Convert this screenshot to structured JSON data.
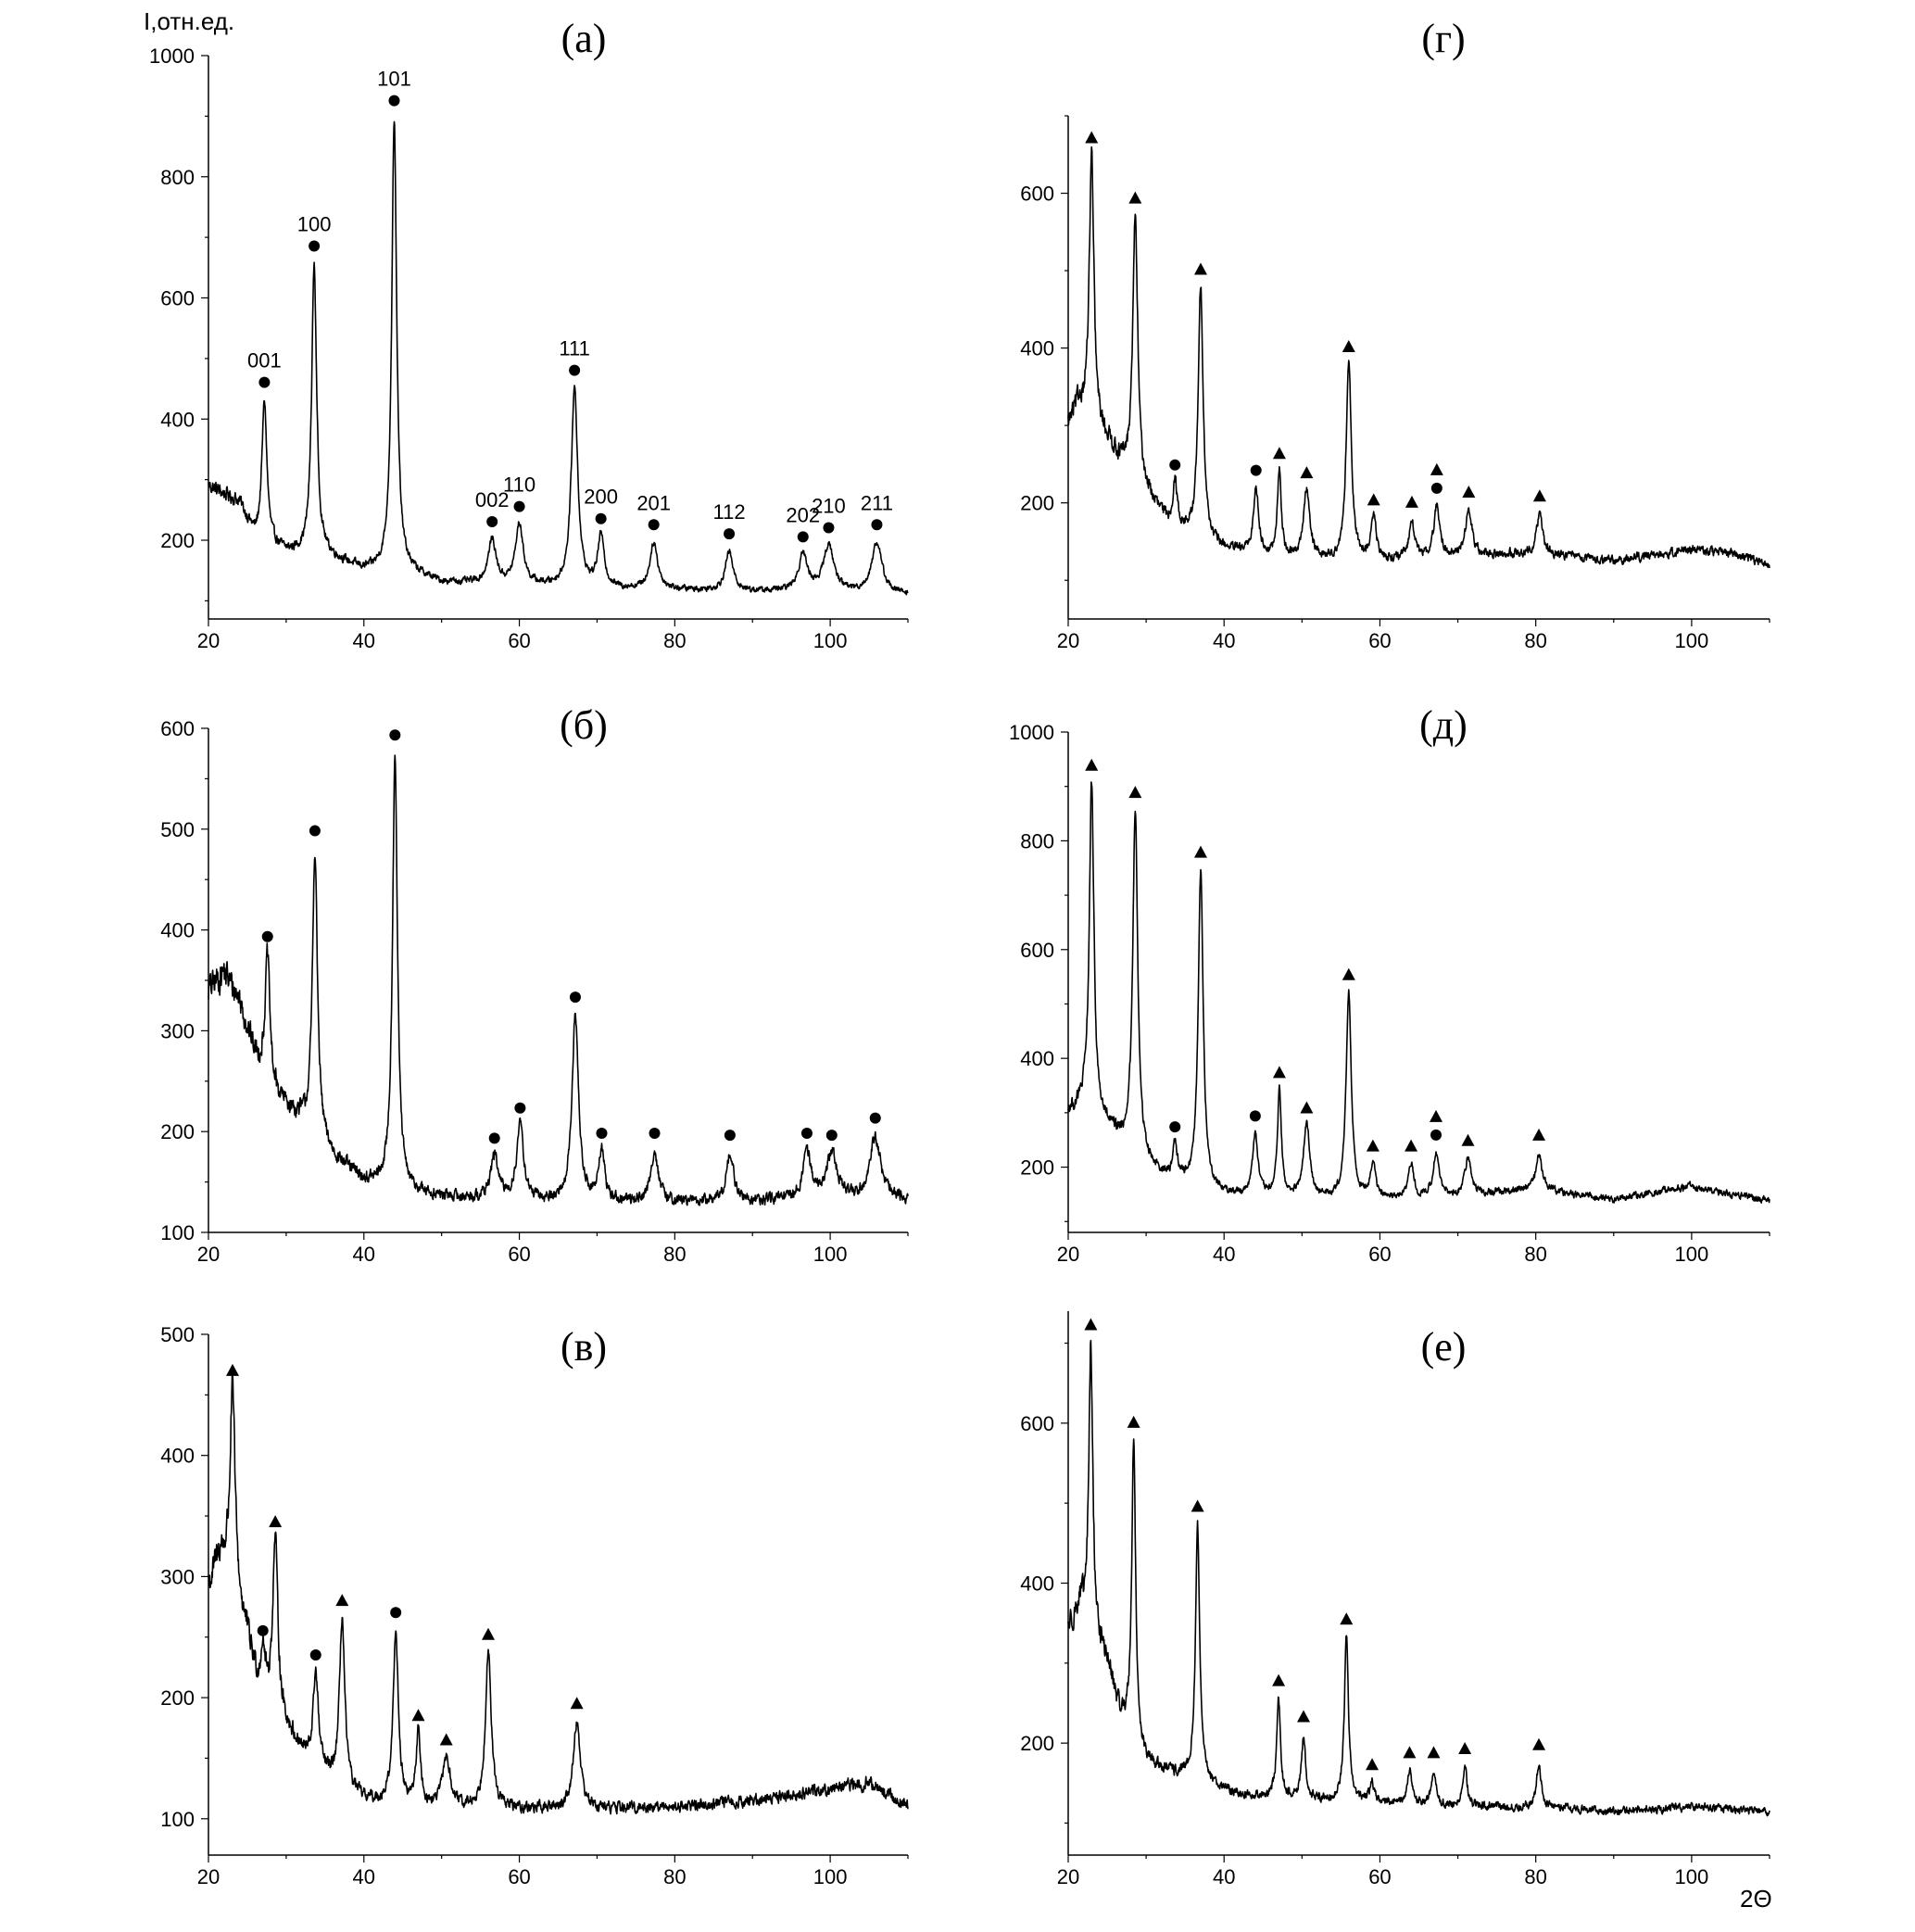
{
  "figure": {
    "ylabel": "I,отн.ед.",
    "xlabel": "2Θ",
    "marker_legend": {
      "circle": "●",
      "triangle": "▲"
    },
    "line_color": "#000000"
  },
  "chart_data": [
    {
      "id": "a",
      "type": "line",
      "title": "(а)",
      "xlim": [
        20,
        110
      ],
      "ylim": [
        70,
        1000
      ],
      "xticks": [
        20,
        40,
        60,
        80,
        100
      ],
      "yticks": [
        200,
        400,
        600,
        800,
        1000
      ],
      "baseline": [
        [
          20,
          290
        ],
        [
          24,
          262
        ],
        [
          26,
          205
        ],
        [
          30,
          180
        ],
        [
          35,
          175
        ],
        [
          40,
          150
        ],
        [
          45,
          150
        ],
        [
          50,
          130
        ],
        [
          60,
          125
        ],
        [
          70,
          120
        ],
        [
          80,
          118
        ],
        [
          90,
          115
        ],
        [
          100,
          115
        ],
        [
          110,
          110
        ]
      ],
      "peaks": [
        {
          "x": 27.2,
          "y": 430,
          "w": 0.38,
          "marker": "circle",
          "label": "001"
        },
        {
          "x": 33.6,
          "y": 655,
          "w": 0.38,
          "marker": "circle",
          "label": "100"
        },
        {
          "x": 43.9,
          "y": 895,
          "w": 0.38,
          "marker": "circle",
          "label": "101"
        },
        {
          "x": 56.5,
          "y": 200,
          "w": 0.6,
          "marker": "circle",
          "label": "002"
        },
        {
          "x": 60.0,
          "y": 225,
          "w": 0.6,
          "marker": "circle",
          "label": "110"
        },
        {
          "x": 67.1,
          "y": 450,
          "w": 0.5,
          "marker": "circle",
          "label": "111"
        },
        {
          "x": 70.5,
          "y": 205,
          "w": 0.5,
          "marker": "circle",
          "label": "200"
        },
        {
          "x": 77.3,
          "y": 195,
          "w": 0.6,
          "marker": "circle",
          "label": "201"
        },
        {
          "x": 87.0,
          "y": 180,
          "w": 0.6,
          "marker": "circle",
          "label": "112"
        },
        {
          "x": 96.5,
          "y": 175,
          "w": 0.7,
          "marker": "circle",
          "label": "202"
        },
        {
          "x": 99.8,
          "y": 190,
          "w": 0.8,
          "marker": "circle",
          "label": "210"
        },
        {
          "x": 106.0,
          "y": 195,
          "w": 0.8,
          "marker": "circle",
          "label": "211"
        }
      ]
    },
    {
      "id": "b",
      "type": "line",
      "title": "(б)",
      "xlim": [
        20,
        110
      ],
      "ylim": [
        100,
        600
      ],
      "xticks": [
        20,
        40,
        60,
        80,
        100
      ],
      "yticks": [
        100,
        200,
        300,
        400,
        500,
        600
      ],
      "baseline": [
        [
          20,
          340
        ],
        [
          22,
          358
        ],
        [
          24,
          330
        ],
        [
          26,
          275
        ],
        [
          28,
          240
        ],
        [
          32,
          210
        ],
        [
          36,
          175
        ],
        [
          40,
          150
        ],
        [
          45,
          140
        ],
        [
          50,
          135
        ],
        [
          60,
          130
        ],
        [
          70,
          130
        ],
        [
          80,
          130
        ],
        [
          90,
          130
        ],
        [
          100,
          135
        ],
        [
          110,
          132
        ]
      ],
      "peaks": [
        {
          "x": 27.6,
          "y": 375,
          "w": 0.38,
          "marker": "circle"
        },
        {
          "x": 33.7,
          "y": 480,
          "w": 0.38,
          "marker": "circle"
        },
        {
          "x": 44.0,
          "y": 575,
          "w": 0.38,
          "marker": "circle"
        },
        {
          "x": 56.8,
          "y": 175,
          "w": 0.6,
          "marker": "circle"
        },
        {
          "x": 60.1,
          "y": 205,
          "w": 0.55,
          "marker": "circle"
        },
        {
          "x": 67.2,
          "y": 315,
          "w": 0.5,
          "marker": "circle"
        },
        {
          "x": 70.6,
          "y": 180,
          "w": 0.45,
          "marker": "circle"
        },
        {
          "x": 77.4,
          "y": 180,
          "w": 0.55,
          "marker": "circle"
        },
        {
          "x": 87.1,
          "y": 178,
          "w": 0.55,
          "marker": "circle"
        },
        {
          "x": 97.0,
          "y": 180,
          "w": 0.6,
          "marker": "circle"
        },
        {
          "x": 100.2,
          "y": 178,
          "w": 0.8,
          "marker": "circle"
        },
        {
          "x": 105.8,
          "y": 195,
          "w": 0.8,
          "marker": "circle"
        }
      ]
    },
    {
      "id": "v",
      "type": "line",
      "title": "(в)",
      "xlim": [
        20,
        110
      ],
      "ylim": [
        70,
        500
      ],
      "xticks": [
        20,
        40,
        60,
        80,
        100
      ],
      "yticks": [
        100,
        200,
        300,
        400,
        500
      ],
      "baseline": [
        [
          20,
          290
        ],
        [
          21.5,
          318
        ],
        [
          23,
          300
        ],
        [
          25,
          250
        ],
        [
          26.5,
          205
        ],
        [
          28,
          190
        ],
        [
          30,
          175
        ],
        [
          33,
          145
        ],
        [
          36,
          130
        ],
        [
          40,
          115
        ],
        [
          45,
          110
        ],
        [
          50,
          108
        ],
        [
          60,
          108
        ],
        [
          70,
          108
        ],
        [
          80,
          110
        ],
        [
          90,
          115
        ],
        [
          100,
          125
        ],
        [
          105,
          130
        ],
        [
          110,
          110
        ]
      ],
      "peaks": [
        {
          "x": 23.1,
          "y": 455,
          "w": 0.38,
          "marker": "triangle"
        },
        {
          "x": 27.0,
          "y": 240,
          "w": 0.35,
          "marker": "circle"
        },
        {
          "x": 28.6,
          "y": 330,
          "w": 0.4,
          "marker": "triangle"
        },
        {
          "x": 33.8,
          "y": 220,
          "w": 0.4,
          "marker": "circle"
        },
        {
          "x": 37.2,
          "y": 265,
          "w": 0.4,
          "marker": "triangle"
        },
        {
          "x": 44.1,
          "y": 255,
          "w": 0.4,
          "marker": "circle"
        },
        {
          "x": 47.0,
          "y": 170,
          "w": 0.35,
          "marker": "triangle"
        },
        {
          "x": 50.6,
          "y": 150,
          "w": 0.6,
          "marker": "triangle"
        },
        {
          "x": 56.0,
          "y": 237,
          "w": 0.45,
          "marker": "triangle"
        },
        {
          "x": 67.4,
          "y": 180,
          "w": 0.55,
          "marker": "triangle"
        }
      ]
    },
    {
      "id": "g",
      "type": "line",
      "title": "(г)",
      "xlim": [
        20,
        110
      ],
      "ylim": [
        50,
        700
      ],
      "xticks": [
        20,
        40,
        60,
        80,
        100
      ],
      "yticks": [
        200,
        400,
        600
      ],
      "baseline": [
        [
          20,
          300
        ],
        [
          21.5,
          325
        ],
        [
          23,
          300
        ],
        [
          25,
          280
        ],
        [
          27,
          245
        ],
        [
          30,
          210
        ],
        [
          33,
          170
        ],
        [
          36,
          155
        ],
        [
          40,
          140
        ],
        [
          45,
          130
        ],
        [
          50,
          125
        ],
        [
          60,
          125
        ],
        [
          70,
          130
        ],
        [
          80,
          135
        ],
        [
          90,
          125
        ],
        [
          100,
          140
        ],
        [
          105,
          135
        ],
        [
          110,
          120
        ]
      ],
      "peaks": [
        {
          "x": 23.0,
          "y": 648,
          "w": 0.35,
          "marker": "triangle"
        },
        {
          "x": 28.6,
          "y": 570,
          "w": 0.38,
          "marker": "triangle"
        },
        {
          "x": 33.7,
          "y": 225,
          "w": 0.35,
          "marker": "circle"
        },
        {
          "x": 37.0,
          "y": 478,
          "w": 0.38,
          "marker": "triangle"
        },
        {
          "x": 44.1,
          "y": 218,
          "w": 0.4,
          "marker": "circle"
        },
        {
          "x": 47.1,
          "y": 240,
          "w": 0.3,
          "marker": "triangle"
        },
        {
          "x": 50.6,
          "y": 215,
          "w": 0.5,
          "marker": "triangle"
        },
        {
          "x": 56.0,
          "y": 378,
          "w": 0.4,
          "marker": "triangle"
        },
        {
          "x": 59.2,
          "y": 180,
          "w": 0.4,
          "marker": "triangle"
        },
        {
          "x": 64.1,
          "y": 177,
          "w": 0.4,
          "marker": "triangle"
        },
        {
          "x": 67.3,
          "y": 195,
          "w": 0.45,
          "marker": "triangle",
          "marker2": "circle"
        },
        {
          "x": 71.4,
          "y": 190,
          "w": 0.5,
          "marker": "triangle"
        },
        {
          "x": 80.5,
          "y": 185,
          "w": 0.45,
          "marker": "triangle"
        }
      ]
    },
    {
      "id": "d",
      "type": "line",
      "title": "(д)",
      "xlim": [
        20,
        110
      ],
      "ylim": [
        80,
        1000
      ],
      "xticks": [
        20,
        40,
        60,
        80,
        100
      ],
      "yticks": [
        200,
        400,
        600,
        800,
        1000
      ],
      "baseline": [
        [
          20,
          300
        ],
        [
          22,
          310
        ],
        [
          24,
          285
        ],
        [
          26,
          255
        ],
        [
          28,
          230
        ],
        [
          30,
          205
        ],
        [
          33,
          175
        ],
        [
          36,
          165
        ],
        [
          40,
          150
        ],
        [
          45,
          145
        ],
        [
          50,
          140
        ],
        [
          60,
          140
        ],
        [
          70,
          145
        ],
        [
          80,
          160
        ],
        [
          90,
          140
        ],
        [
          100,
          165
        ],
        [
          105,
          150
        ],
        [
          110,
          140
        ]
      ],
      "peaks": [
        {
          "x": 23.0,
          "y": 905,
          "w": 0.35,
          "marker": "triangle"
        },
        {
          "x": 28.6,
          "y": 855,
          "w": 0.38,
          "marker": "triangle"
        },
        {
          "x": 33.7,
          "y": 240,
          "w": 0.35,
          "marker": "circle"
        },
        {
          "x": 37.0,
          "y": 745,
          "w": 0.38,
          "marker": "triangle"
        },
        {
          "x": 44.0,
          "y": 260,
          "w": 0.4,
          "marker": "circle"
        },
        {
          "x": 47.1,
          "y": 340,
          "w": 0.3,
          "marker": "triangle"
        },
        {
          "x": 50.6,
          "y": 275,
          "w": 0.5,
          "marker": "triangle"
        },
        {
          "x": 56.0,
          "y": 520,
          "w": 0.4,
          "marker": "triangle"
        },
        {
          "x": 59.1,
          "y": 205,
          "w": 0.4,
          "marker": "triangle"
        },
        {
          "x": 64.0,
          "y": 205,
          "w": 0.4,
          "marker": "triangle"
        },
        {
          "x": 67.2,
          "y": 225,
          "w": 0.45,
          "marker": "triangle",
          "marker2": "circle"
        },
        {
          "x": 71.3,
          "y": 215,
          "w": 0.5,
          "marker": "triangle"
        },
        {
          "x": 80.4,
          "y": 225,
          "w": 0.45,
          "marker": "triangle"
        }
      ]
    },
    {
      "id": "e",
      "type": "line",
      "title": "(е)",
      "xlim": [
        20,
        110
      ],
      "ylim": [
        60,
        740
      ],
      "xticks": [
        20,
        40,
        60,
        80,
        100
      ],
      "yticks": [
        200,
        400,
        600
      ],
      "baseline": [
        [
          20,
          345
        ],
        [
          21.5,
          368
        ],
        [
          23,
          340
        ],
        [
          25,
          300
        ],
        [
          26.5,
          240
        ],
        [
          28,
          210
        ],
        [
          30,
          175
        ],
        [
          34,
          160
        ],
        [
          38,
          150
        ],
        [
          42,
          135
        ],
        [
          50,
          130
        ],
        [
          60,
          125
        ],
        [
          70,
          120
        ],
        [
          80,
          120
        ],
        [
          90,
          115
        ],
        [
          100,
          120
        ],
        [
          110,
          115
        ]
      ],
      "peaks": [
        {
          "x": 22.9,
          "y": 700,
          "w": 0.3,
          "marker": "triangle"
        },
        {
          "x": 28.4,
          "y": 578,
          "w": 0.3,
          "marker": "triangle"
        },
        {
          "x": 36.6,
          "y": 473,
          "w": 0.32,
          "marker": "triangle"
        },
        {
          "x": 47.0,
          "y": 255,
          "w": 0.28,
          "marker": "triangle"
        },
        {
          "x": 50.2,
          "y": 210,
          "w": 0.3,
          "marker": "triangle"
        },
        {
          "x": 55.7,
          "y": 332,
          "w": 0.32,
          "marker": "triangle"
        },
        {
          "x": 59.0,
          "y": 150,
          "w": 0.35,
          "marker": "triangle"
        },
        {
          "x": 63.8,
          "y": 165,
          "w": 0.35,
          "marker": "triangle"
        },
        {
          "x": 66.9,
          "y": 165,
          "w": 0.35,
          "marker": "triangle"
        },
        {
          "x": 70.9,
          "y": 170,
          "w": 0.35,
          "marker": "triangle"
        },
        {
          "x": 80.4,
          "y": 175,
          "w": 0.35,
          "marker": "triangle"
        }
      ]
    }
  ]
}
